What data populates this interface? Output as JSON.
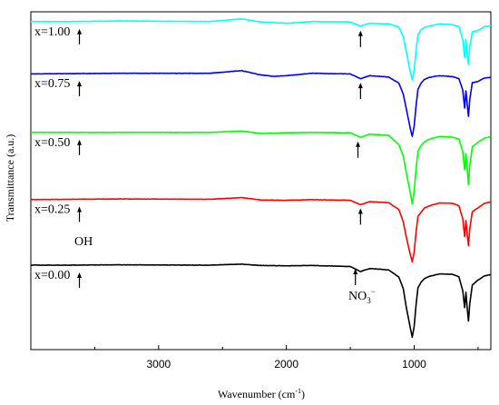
{
  "chart_data": {
    "type": "line",
    "xlabel": "Wavenumber (cm",
    "xlabel_sup": "-1",
    "xlabel_close": ")",
    "ylabel": "Transmittance (a.u.)",
    "xlim": [
      4000,
      400
    ],
    "x_reversed": true,
    "ylim": [
      0,
      100
    ],
    "y_ticks_shown": false,
    "grid": false,
    "x_ticks": [
      3000,
      2000,
      1000
    ],
    "x_tick_labels": [
      "3000",
      "2000",
      "1000"
    ],
    "series": [
      {
        "name": "x=1.00",
        "color": "#00FFFF",
        "baseline": 97.1,
        "points": [
          [
            4000,
            97.1
          ],
          [
            3700,
            97.1
          ],
          [
            3300,
            97.3
          ],
          [
            2600,
            97.1
          ],
          [
            2350,
            97.9
          ],
          [
            2200,
            97.0
          ],
          [
            2000,
            96.6
          ],
          [
            1800,
            97.1
          ],
          [
            1500,
            97.0
          ],
          [
            1420,
            95.8
          ],
          [
            1350,
            96.6
          ],
          [
            1200,
            96.4
          ],
          [
            1120,
            95.5
          ],
          [
            1085,
            92.6
          ],
          [
            1060,
            88.0
          ],
          [
            1030,
            82.1
          ],
          [
            1015,
            79.9
          ],
          [
            1000,
            82.8
          ],
          [
            985,
            88.6
          ],
          [
            970,
            93.3
          ],
          [
            945,
            94.7
          ],
          [
            920,
            95.4
          ],
          [
            880,
            95.8
          ],
          [
            800,
            96.4
          ],
          [
            700,
            96.2
          ],
          [
            650,
            95.6
          ],
          [
            620,
            91.8
          ],
          [
            605,
            86.4
          ],
          [
            595,
            91.8
          ],
          [
            585,
            87.3
          ],
          [
            575,
            84.5
          ],
          [
            565,
            89.5
          ],
          [
            545,
            94.1
          ],
          [
            500,
            94.5
          ],
          [
            450,
            95.6
          ],
          [
            400,
            95.9
          ]
        ]
      },
      {
        "name": "x=0.75",
        "color": "#0000FF",
        "baseline": 81.7,
        "points": [
          [
            4000,
            81.6
          ],
          [
            3700,
            81.7
          ],
          [
            3300,
            81.8
          ],
          [
            2600,
            81.8
          ],
          [
            2350,
            82.6
          ],
          [
            2200,
            81.3
          ],
          [
            2100,
            80.9
          ],
          [
            2000,
            81.1
          ],
          [
            1800,
            81.8
          ],
          [
            1500,
            81.6
          ],
          [
            1420,
            80.2
          ],
          [
            1350,
            81.1
          ],
          [
            1200,
            80.7
          ],
          [
            1120,
            78.9
          ],
          [
            1085,
            75.6
          ],
          [
            1060,
            71.0
          ],
          [
            1030,
            65.4
          ],
          [
            1015,
            63.1
          ],
          [
            1000,
            66.2
          ],
          [
            985,
            72.2
          ],
          [
            970,
            77.1
          ],
          [
            945,
            78.9
          ],
          [
            920,
            80.0
          ],
          [
            880,
            80.6
          ],
          [
            800,
            81.1
          ],
          [
            700,
            80.8
          ],
          [
            650,
            80.2
          ],
          [
            620,
            76.9
          ],
          [
            605,
            71.5
          ],
          [
            595,
            76.6
          ],
          [
            585,
            72.7
          ],
          [
            575,
            69.0
          ],
          [
            565,
            74.0
          ],
          [
            545,
            79.0
          ],
          [
            500,
            79.4
          ],
          [
            450,
            80.4
          ],
          [
            400,
            80.6
          ]
        ]
      },
      {
        "name": "x=0.50",
        "color": "#00FF00",
        "baseline": 64.3,
        "points": [
          [
            4000,
            64.3
          ],
          [
            3700,
            64.3
          ],
          [
            3300,
            64.3
          ],
          [
            2600,
            64.3
          ],
          [
            2350,
            64.7
          ],
          [
            2200,
            64.0
          ],
          [
            2000,
            64.2
          ],
          [
            1800,
            64.3
          ],
          [
            1500,
            64.2
          ],
          [
            1420,
            62.8
          ],
          [
            1350,
            63.8
          ],
          [
            1200,
            63.4
          ],
          [
            1120,
            60.7
          ],
          [
            1085,
            57.3
          ],
          [
            1060,
            52.1
          ],
          [
            1030,
            46.4
          ],
          [
            1015,
            43.1
          ],
          [
            1000,
            46.8
          ],
          [
            985,
            53.5
          ],
          [
            970,
            58.8
          ],
          [
            945,
            60.4
          ],
          [
            920,
            61.5
          ],
          [
            880,
            62.3
          ],
          [
            800,
            63.1
          ],
          [
            700,
            62.9
          ],
          [
            650,
            62.3
          ],
          [
            620,
            58.7
          ],
          [
            605,
            53.2
          ],
          [
            595,
            58.0
          ],
          [
            585,
            53.7
          ],
          [
            575,
            48.8
          ],
          [
            565,
            54.4
          ],
          [
            545,
            60.0
          ],
          [
            500,
            61.4
          ],
          [
            450,
            62.6
          ],
          [
            400,
            63.1
          ]
        ]
      },
      {
        "name": "x=0.25",
        "color": "#FF0000",
        "baseline": 44.5,
        "points": [
          [
            4000,
            44.4
          ],
          [
            3700,
            44.5
          ],
          [
            3300,
            44.6
          ],
          [
            2600,
            44.5
          ],
          [
            2350,
            45.0
          ],
          [
            2200,
            44.3
          ],
          [
            2000,
            44.2
          ],
          [
            1800,
            44.4
          ],
          [
            1500,
            44.2
          ],
          [
            1420,
            42.9
          ],
          [
            1350,
            43.8
          ],
          [
            1200,
            43.5
          ],
          [
            1120,
            41.5
          ],
          [
            1085,
            37.8
          ],
          [
            1060,
            33.0
          ],
          [
            1030,
            28.1
          ],
          [
            1015,
            26.0
          ],
          [
            1000,
            28.9
          ],
          [
            985,
            34.8
          ],
          [
            970,
            39.5
          ],
          [
            945,
            40.7
          ],
          [
            920,
            41.9
          ],
          [
            880,
            42.6
          ],
          [
            800,
            43.4
          ],
          [
            700,
            43.3
          ],
          [
            650,
            42.6
          ],
          [
            620,
            38.8
          ],
          [
            605,
            33.5
          ],
          [
            595,
            38.2
          ],
          [
            585,
            34.2
          ],
          [
            575,
            30.8
          ],
          [
            565,
            35.7
          ],
          [
            545,
            40.8
          ],
          [
            500,
            42.0
          ],
          [
            450,
            43.3
          ],
          [
            400,
            43.7
          ]
        ]
      },
      {
        "name": "x=0.00",
        "color": "#000000",
        "baseline": 25.0,
        "points": [
          [
            4000,
            25.0
          ],
          [
            3700,
            25.0
          ],
          [
            3300,
            25.1
          ],
          [
            2600,
            25.0
          ],
          [
            2350,
            25.3
          ],
          [
            2200,
            24.9
          ],
          [
            2000,
            24.8
          ],
          [
            1800,
            24.9
          ],
          [
            1500,
            24.6
          ],
          [
            1420,
            23.1
          ],
          [
            1350,
            24.0
          ],
          [
            1200,
            23.6
          ],
          [
            1120,
            21.5
          ],
          [
            1085,
            18.0
          ],
          [
            1060,
            12.2
          ],
          [
            1030,
            6.4
          ],
          [
            1015,
            3.7
          ],
          [
            1000,
            6.9
          ],
          [
            985,
            13.3
          ],
          [
            970,
            18.3
          ],
          [
            945,
            20.0
          ],
          [
            920,
            21.0
          ],
          [
            880,
            21.7
          ],
          [
            800,
            22.4
          ],
          [
            700,
            22.3
          ],
          [
            650,
            21.6
          ],
          [
            620,
            17.5
          ],
          [
            605,
            12.4
          ],
          [
            595,
            17.0
          ],
          [
            585,
            12.3
          ],
          [
            575,
            8.5
          ],
          [
            565,
            13.6
          ],
          [
            545,
            19.1
          ],
          [
            500,
            20.6
          ],
          [
            450,
            21.8
          ],
          [
            400,
            22.2
          ]
        ]
      }
    ],
    "annotations": {
      "oh_label": "OH",
      "no3_label": "NO",
      "no3_sub": "3",
      "no3_sup": "−"
    }
  }
}
